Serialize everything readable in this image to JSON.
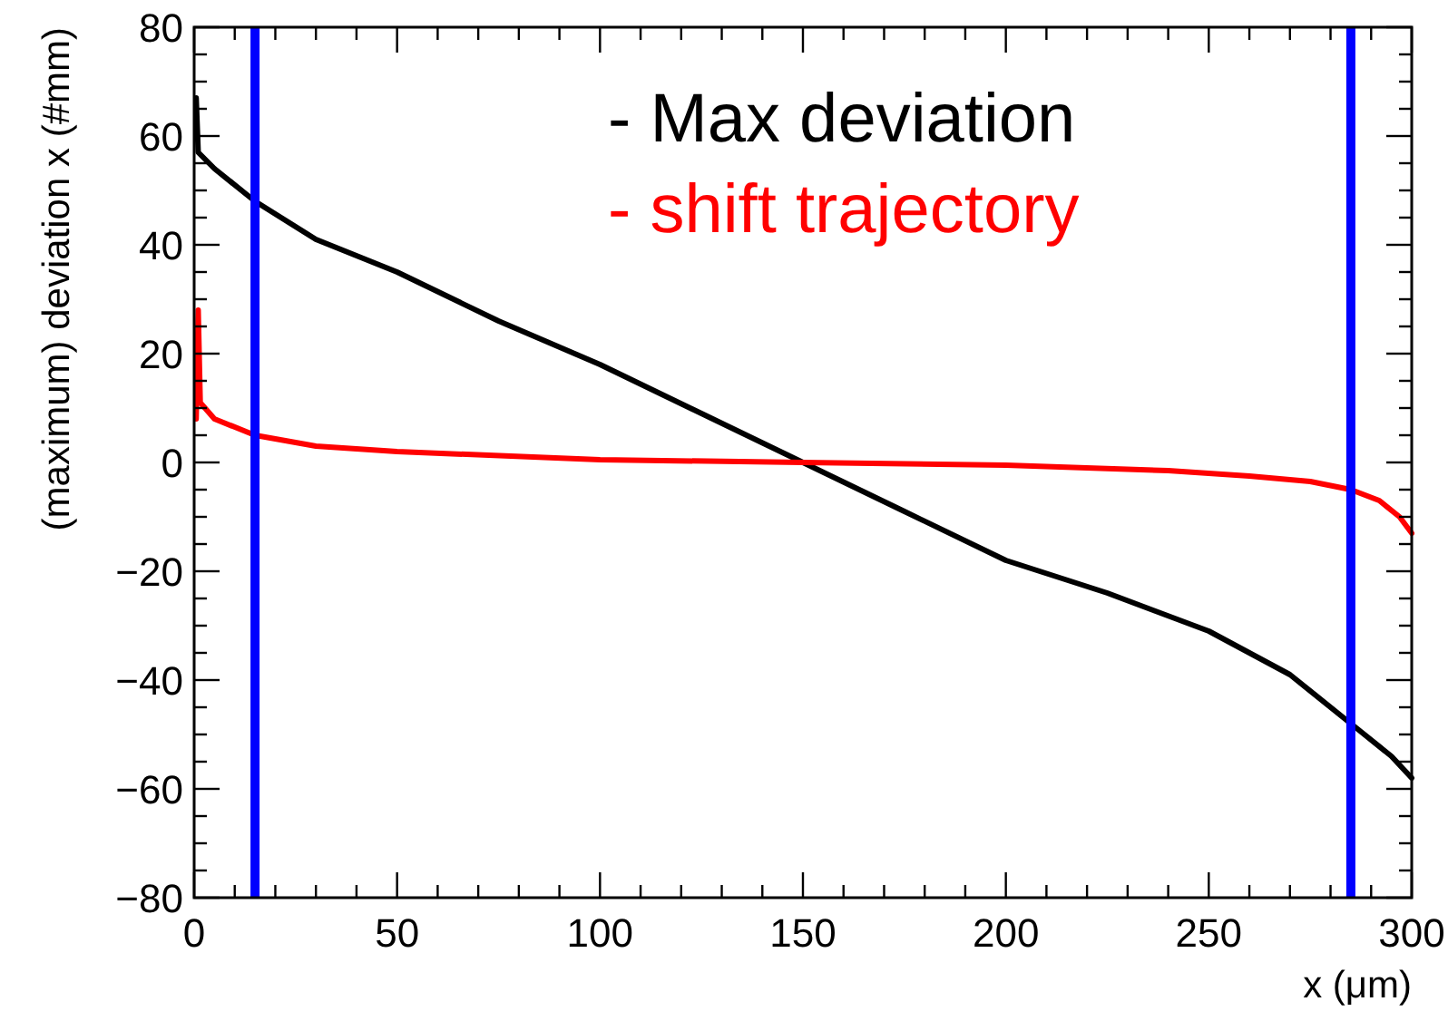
{
  "chart_data": {
    "type": "line",
    "xlabel": "x (μm)",
    "ylabel": "(maximum) deviation x (#mm)",
    "xlim": [
      0,
      300
    ],
    "xticks": [
      0,
      50,
      100,
      150,
      200,
      250,
      300
    ],
    "ylim": [
      -80,
      80
    ],
    "yticks": [
      -80,
      -60,
      -40,
      -20,
      0,
      20,
      40,
      60,
      80
    ],
    "grid": false,
    "legend": "top",
    "marker": "none",
    "line_style": "solid",
    "ref_lines": [
      {
        "axis": "x",
        "value": 15,
        "color": "#0000ff"
      },
      {
        "axis": "x",
        "value": 285,
        "color": "#0000ff"
      }
    ],
    "series": [
      {
        "name": "- Max deviation",
        "color": "#000000",
        "x": [
          0.5,
          1,
          5,
          15,
          30,
          50,
          75,
          100,
          125,
          150,
          175,
          200,
          225,
          250,
          270,
          285,
          295,
          300
        ],
        "values": [
          67,
          57,
          54,
          48,
          41,
          35,
          26,
          18,
          9,
          0,
          -9,
          -18,
          -24,
          -31,
          -39,
          -48,
          -54,
          -58
        ]
      },
      {
        "name": "- shift trajectory",
        "color": "#ff0000",
        "x": [
          0.5,
          1,
          1.5,
          5,
          15,
          30,
          50,
          100,
          150,
          200,
          240,
          260,
          275,
          285,
          292,
          297,
          300
        ],
        "values": [
          8,
          28,
          11,
          8,
          5,
          3,
          2,
          0.5,
          0,
          -0.5,
          -1.5,
          -2.5,
          -3.5,
          -5,
          -7,
          -10,
          -13
        ]
      }
    ]
  }
}
